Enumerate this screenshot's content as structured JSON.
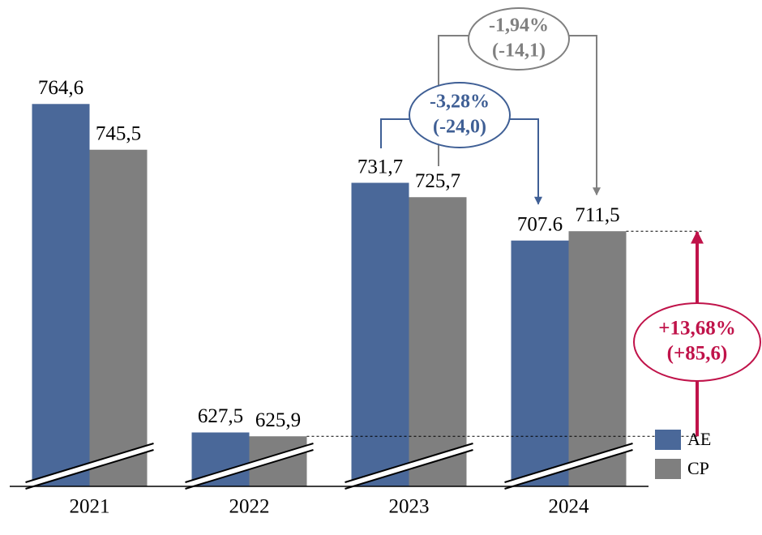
{
  "chart_data": {
    "type": "bar",
    "categories": [
      "2021",
      "2022",
      "2023",
      "2024"
    ],
    "series": [
      {
        "name": "AE",
        "color": "#4a6899",
        "values": [
          764.6,
          627.5,
          731.7,
          707.6
        ],
        "value_labels": [
          "764,6",
          "627,5",
          "731,7",
          "707.6"
        ]
      },
      {
        "name": "CP",
        "color": "#7f7f7f",
        "values": [
          745.5,
          625.9,
          725.7,
          711.5
        ],
        "value_labels": [
          "745,5",
          "625,9",
          "725,7",
          "711,5"
        ]
      }
    ],
    "ylim": [
      605,
      808
    ],
    "axis_break": true,
    "annotations": [
      {
        "lines": [
          "-1,94%",
          "(-14,1)"
        ],
        "color": "#808080"
      },
      {
        "lines": [
          "-3,28%",
          "(-24,0)"
        ],
        "color": "#3f5f95"
      },
      {
        "lines": [
          "+13,68%",
          "(+85,6)"
        ],
        "color": "#c0134a"
      }
    ]
  }
}
